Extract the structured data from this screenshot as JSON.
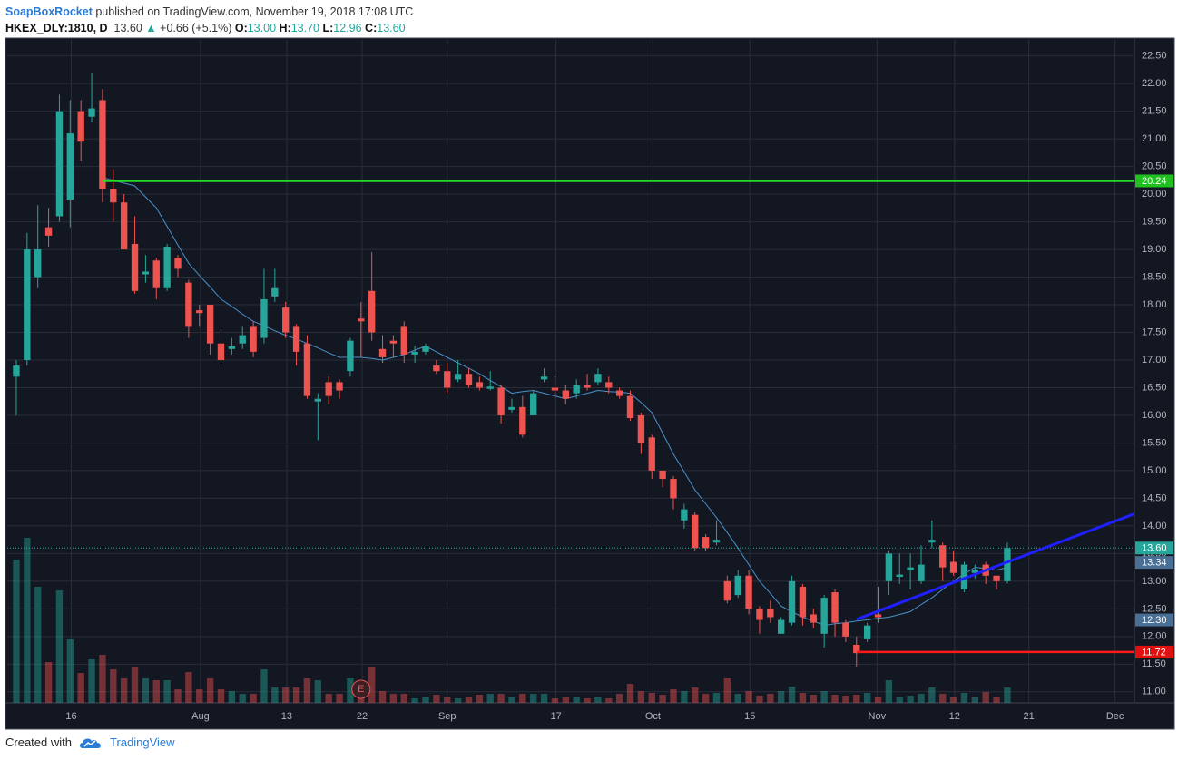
{
  "header": {
    "user": "SoapBoxRocket",
    "published": "published on TradingView.com, November 19, 2018 17:08 UTC",
    "symbol": "HKEX_DLY:1810, D",
    "price": "13.60",
    "arrow": "▲",
    "change": "+0.66 (+5.1%)",
    "o_label": "O:",
    "o": "13.00",
    "h_label": "H:",
    "h": "13.70",
    "l_label": "L:",
    "l": "12.96",
    "c_label": "C:",
    "c": "13.60"
  },
  "chart_data": {
    "type": "candlestick",
    "open": [
      16.7,
      17.0,
      18.5,
      19.4,
      19.6,
      19.9,
      21.5,
      21.4,
      21.7,
      20.1,
      19.85,
      19.1,
      18.55,
      18.8,
      18.3,
      18.85,
      18.4,
      17.9,
      18.0,
      17.3,
      17.2,
      17.3,
      17.6,
      17.4,
      18.15,
      17.95,
      17.6,
      17.3,
      16.25,
      16.6,
      16.6,
      16.8,
      17.75,
      18.25,
      17.2,
      17.35,
      17.6,
      17.1,
      17.15,
      16.9,
      16.8,
      16.65,
      16.75,
      16.6,
      16.48,
      16.5,
      16.1,
      16.15,
      16.0,
      16.65,
      16.5,
      16.45,
      16.4,
      16.55,
      16.6,
      16.6,
      16.45,
      16.35,
      16.0,
      15.6,
      15.0,
      14.85,
      14.1,
      14.2,
      13.8,
      13.7,
      13.0,
      12.75,
      13.1,
      12.5,
      12.5,
      12.05,
      12.25,
      12.9,
      12.4,
      12.05,
      12.8,
      12.25,
      11.85,
      11.95,
      12.4,
      13.0,
      13.08,
      13.2,
      13.0,
      13.7,
      13.65,
      13.35,
      12.85,
      13.15,
      13.3,
      13.1,
      13.0
    ],
    "high": [
      17.0,
      19.3,
      19.8,
      19.75,
      21.8,
      21.7,
      21.7,
      22.2,
      21.9,
      20.45,
      20.0,
      19.6,
      18.9,
      18.85,
      19.1,
      18.9,
      18.45,
      18.0,
      18.0,
      17.55,
      17.4,
      17.6,
      17.7,
      18.65,
      18.65,
      18.05,
      17.65,
      17.45,
      16.4,
      16.7,
      16.65,
      17.4,
      18.05,
      18.95,
      17.45,
      17.45,
      17.7,
      17.25,
      17.3,
      17.0,
      16.95,
      17.0,
      16.85,
      16.7,
      16.8,
      16.55,
      16.3,
      16.35,
      16.45,
      16.85,
      16.7,
      16.55,
      16.65,
      16.75,
      16.85,
      16.7,
      16.5,
      16.45,
      16.05,
      15.65,
      15.0,
      14.9,
      14.4,
      14.25,
      13.85,
      14.1,
      13.1,
      13.2,
      13.2,
      12.55,
      12.65,
      12.35,
      13.1,
      12.95,
      12.5,
      12.75,
      12.85,
      12.3,
      12.0,
      12.25,
      12.9,
      13.55,
      13.5,
      13.5,
      13.65,
      14.1,
      13.7,
      13.55,
      13.35,
      13.3,
      13.35,
      13.1,
      13.7
    ],
    "low": [
      16.0,
      16.9,
      18.3,
      19.05,
      19.5,
      19.4,
      20.6,
      21.3,
      19.85,
      19.5,
      19.0,
      18.2,
      18.4,
      18.1,
      18.25,
      18.5,
      17.4,
      17.6,
      17.1,
      16.9,
      17.1,
      17.2,
      17.05,
      17.3,
      18.05,
      17.4,
      16.9,
      16.3,
      15.55,
      16.2,
      16.3,
      16.7,
      17.05,
      17.35,
      16.95,
      17.05,
      16.95,
      16.95,
      17.1,
      16.75,
      16.4,
      16.6,
      16.5,
      16.45,
      16.45,
      15.85,
      16.05,
      15.6,
      16.0,
      16.6,
      16.3,
      16.2,
      16.3,
      16.45,
      16.55,
      16.4,
      16.3,
      15.9,
      15.3,
      14.85,
      14.7,
      14.3,
      13.95,
      13.55,
      13.55,
      13.65,
      12.6,
      12.7,
      12.4,
      12.05,
      12.25,
      12.05,
      12.2,
      12.2,
      12.15,
      11.8,
      12.0,
      11.9,
      11.45,
      11.9,
      12.25,
      12.75,
      12.95,
      12.85,
      12.95,
      13.6,
      13.0,
      13.1,
      12.8,
      13.05,
      12.95,
      12.85,
      12.96
    ],
    "close": [
      16.9,
      19.0,
      19.0,
      19.25,
      21.5,
      21.1,
      20.95,
      21.55,
      20.1,
      19.85,
      19.0,
      18.25,
      18.6,
      18.3,
      19.05,
      18.65,
      17.6,
      17.85,
      17.3,
      17.0,
      17.25,
      17.45,
      17.15,
      18.1,
      18.3,
      17.5,
      17.15,
      16.35,
      16.3,
      16.35,
      16.45,
      17.35,
      17.7,
      17.5,
      17.05,
      17.3,
      17.1,
      17.15,
      17.25,
      16.8,
      16.5,
      16.75,
      16.55,
      16.5,
      16.52,
      16.0,
      16.15,
      15.65,
      16.4,
      16.7,
      16.45,
      16.3,
      16.55,
      16.5,
      16.75,
      16.5,
      16.35,
      15.95,
      15.5,
      15.0,
      14.85,
      14.5,
      14.3,
      13.6,
      13.6,
      13.75,
      12.65,
      13.1,
      12.5,
      12.3,
      12.35,
      12.3,
      13.0,
      12.35,
      12.25,
      12.7,
      12.25,
      12.0,
      11.7,
      12.2,
      12.35,
      13.5,
      13.12,
      13.25,
      13.3,
      13.75,
      13.25,
      13.15,
      13.3,
      13.2,
      13.1,
      13.0,
      13.6
    ],
    "volume": [
      158,
      182,
      128,
      45,
      124,
      70,
      33,
      48,
      53,
      37,
      27,
      39,
      27,
      25,
      25,
      15,
      34,
      15,
      27,
      15,
      13,
      10,
      10,
      37,
      17,
      17,
      17,
      27,
      25,
      10,
      10,
      27,
      15,
      39,
      13,
      10,
      10,
      5,
      7,
      9,
      7,
      5,
      7,
      9,
      10,
      10,
      7,
      10,
      10,
      10,
      5,
      7,
      7,
      5,
      7,
      5,
      10,
      21,
      13,
      11,
      9,
      15,
      13,
      17,
      10,
      11,
      27,
      10,
      13,
      8,
      10,
      13,
      18,
      11,
      9,
      13,
      9,
      8,
      9,
      11,
      7,
      25,
      7,
      8,
      10,
      17,
      10,
      7,
      11,
      7,
      12,
      7,
      17
    ],
    "ma": [
      null,
      null,
      null,
      null,
      null,
      null,
      null,
      null,
      20.3,
      20.25,
      20.2,
      20.15,
      19.95,
      19.75,
      19.42,
      19.08,
      18.75,
      18.53,
      18.32,
      18.1,
      17.97,
      17.83,
      17.7,
      17.62,
      17.53,
      17.45,
      17.38,
      17.3,
      17.22,
      17.13,
      17.05,
      17.05,
      17.05,
      17.03,
      17.0,
      17.05,
      17.1,
      17.18,
      17.25,
      17.15,
      17.05,
      16.95,
      16.85,
      16.75,
      16.63,
      16.52,
      16.4,
      16.43,
      16.45,
      16.4,
      16.35,
      16.3,
      16.35,
      16.4,
      16.45,
      16.43,
      16.42,
      16.4,
      16.23,
      16.05,
      15.68,
      15.3,
      14.98,
      14.65,
      14.4,
      14.15,
      13.88,
      13.6,
      13.3,
      13.0,
      12.78,
      12.55,
      12.45,
      12.35,
      12.28,
      12.2,
      12.23,
      12.25,
      12.28,
      12.3,
      12.33,
      12.35,
      12.4,
      12.45,
      12.58,
      12.7,
      12.85,
      13.0,
      13.13,
      13.25,
      13.23,
      13.2,
      13.25
    ],
    "ma_color": "#4a90c8",
    "up_color": "#26a69a",
    "down_color": "#ef5350",
    "ylim": [
      10.8,
      22.79
    ],
    "yticks": [
      {
        "value": 11,
        "label": "11.00"
      },
      {
        "value": 11.5,
        "label": "11.50"
      },
      {
        "value": 12,
        "label": "12.00"
      },
      {
        "value": 12.5,
        "label": "12.50"
      },
      {
        "value": 13,
        "label": "13.00"
      },
      {
        "value": 13.5,
        "label": "13.50"
      },
      {
        "value": 14,
        "label": "14.00"
      },
      {
        "value": 14.5,
        "label": "14.50"
      },
      {
        "value": 15,
        "label": "15.00"
      },
      {
        "value": 15.5,
        "label": "15.50"
      },
      {
        "value": 16,
        "label": "16.00"
      },
      {
        "value": 16.5,
        "label": "16.50"
      },
      {
        "value": 17,
        "label": "17.00"
      },
      {
        "value": 17.5,
        "label": "17.50"
      },
      {
        "value": 18,
        "label": "18.00"
      },
      {
        "value": 18.5,
        "label": "18.50"
      },
      {
        "value": 19,
        "label": "19.00"
      },
      {
        "value": 19.5,
        "label": "19.50"
      },
      {
        "value": 20,
        "label": "20.00"
      },
      {
        "value": 20.5,
        "label": "20.50"
      },
      {
        "value": 21,
        "label": "21.00"
      },
      {
        "value": 21.5,
        "label": "21.50"
      },
      {
        "value": 22,
        "label": "22.00"
      },
      {
        "value": 22.5,
        "label": "22.50"
      }
    ],
    "xlim": [
      -0.84,
      103.8
    ],
    "xticks": [
      {
        "value": 5.1,
        "label": "16"
      },
      {
        "value": 17.1,
        "label": "Aug"
      },
      {
        "value": 25.1,
        "label": "13"
      },
      {
        "value": 32.1,
        "label": "22"
      },
      {
        "value": 40,
        "label": "Sep"
      },
      {
        "value": 50.1,
        "label": "17"
      },
      {
        "value": 59.1,
        "label": "Oct"
      },
      {
        "value": 68.1,
        "label": "15"
      },
      {
        "value": 79.9,
        "label": "Nov"
      },
      {
        "value": 87.1,
        "label": "12"
      },
      {
        "value": 94.0,
        "label": "21"
      },
      {
        "value": 102.0,
        "label": "Dec"
      }
    ],
    "grid": true,
    "hlines": [
      {
        "value": 20.24,
        "start": 8,
        "color": "#22dd22"
      },
      {
        "value": 11.72,
        "start": 78,
        "color": "#ff1a1a"
      }
    ],
    "trendline": {
      "x": [
        78,
        103.8
      ],
      "y": [
        12.31,
        14.22
      ],
      "color": "#1f1fff"
    },
    "price_labels": [
      {
        "value": 13.34,
        "color": "#4a6f94"
      },
      {
        "value": 12.3,
        "label": "12.30",
        "color": "#4a6f94"
      }
    ],
    "last_price": {
      "value": 13.6,
      "label": "13.60",
      "color": "#26a69a"
    },
    "events": [
      {
        "x": 32,
        "label": "E"
      }
    ]
  },
  "footer": {
    "created": "Created with",
    "brand": "TradingView"
  }
}
